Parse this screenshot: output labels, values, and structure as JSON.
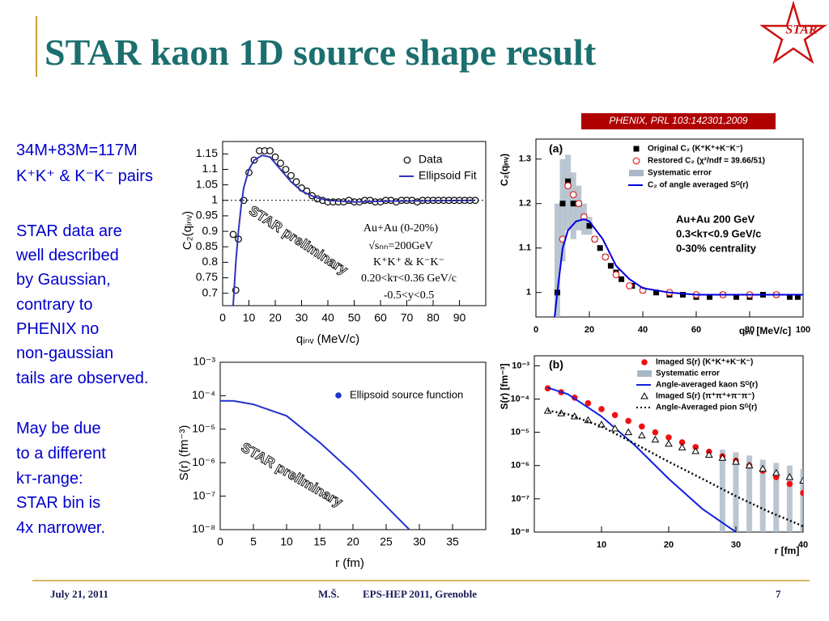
{
  "header": {
    "title": "STAR kaon 1D source shape result",
    "logo": "STAR"
  },
  "side_text": [
    [
      "34M+83M=117M",
      "K⁺K⁺ & K⁻K⁻ pairs"
    ],
    [
      "STAR data are",
      "well described",
      "by Gaussian,",
      "contrary to",
      "PHENIX no",
      "non-gaussian",
      "tails are observed."
    ],
    [
      "May be due",
      "to a different",
      "kᴛ-range:",
      "STAR bin is",
      "4x narrower."
    ]
  ],
  "footer": {
    "date": "July 21, 2011",
    "author": "M.Š.",
    "event": "EPS-HEP 2011, Grenoble",
    "page": "7"
  },
  "chart_data": [
    {
      "type": "line",
      "xlabel": "qᵢₙᵥ (MeV/c)",
      "ylabel": "C₂(qᵢₙᵥ)",
      "xlim": [
        0,
        100
      ],
      "xticks": [
        0,
        10,
        20,
        30,
        40,
        50,
        60,
        70,
        80,
        90
      ],
      "ylim": [
        0.66,
        1.19
      ],
      "yticks": [
        0.7,
        0.75,
        0.8,
        0.85,
        0.9,
        0.95,
        1,
        1.05,
        1.1,
        1.15
      ],
      "reference_line": 1,
      "legend": "upper right",
      "annotations": [
        "Au+Au (0-20%)",
        "√sₙₙ=200GeV",
        "K⁺K⁺ & K⁻K⁻",
        "0.20<kᴛ<0.36 GeV/c",
        "-0.5<y<0.5",
        "STAR preliminary"
      ],
      "series": [
        {
          "name": "Data",
          "kind": "points",
          "marker": "circle-open",
          "color": "#000000",
          "x": [
            4,
            5,
            6,
            8,
            10,
            12,
            14,
            16,
            18,
            20,
            22,
            24,
            26,
            28,
            30,
            32,
            34,
            36,
            38,
            40,
            42,
            44,
            46,
            48,
            50,
            52,
            54,
            56,
            58,
            60,
            62,
            64,
            66,
            68,
            70,
            72,
            74,
            76,
            78,
            80,
            82,
            84,
            86,
            88,
            90,
            92,
            94,
            96
          ],
          "values": [
            0.89,
            0.71,
            0.875,
            1.0,
            1.09,
            1.13,
            1.16,
            1.16,
            1.16,
            1.14,
            1.12,
            1.1,
            1.08,
            1.06,
            1.04,
            1.03,
            1.015,
            1.005,
            1.0,
            0.995,
            0.995,
            0.995,
            0.995,
            1.0,
            0.995,
            0.995,
            1.0,
            1.0,
            0.995,
            0.995,
            1.0,
            1.0,
            0.995,
            1.0,
            1.0,
            1.0,
            0.995,
            1.0,
            1.0,
            1.0,
            1.0,
            1.0,
            1.0,
            1.0,
            1.0,
            1.0,
            1.0,
            1.0
          ]
        },
        {
          "name": "Ellipsoid Fit",
          "kind": "line",
          "color": "#3333bb",
          "x": [
            4,
            5,
            6,
            7,
            8,
            10,
            12,
            15,
            18,
            22,
            26,
            30,
            35,
            40,
            50,
            60,
            70,
            80,
            96
          ],
          "values": [
            0.66,
            0.8,
            0.9,
            0.98,
            1.04,
            1.1,
            1.13,
            1.145,
            1.14,
            1.1,
            1.06,
            1.03,
            1.01,
            1.0,
            0.995,
            0.997,
            0.998,
            0.999,
            1.0
          ]
        }
      ]
    },
    {
      "type": "line",
      "xlabel": "qᵢₙᵥ [MeV/c]",
      "ylabel": "C₂(qᵢₙᵥ)",
      "source": "PHENIX, PRL 103:142301,2009",
      "xlim": [
        0,
        100
      ],
      "xticks": [
        0,
        20,
        40,
        60,
        80,
        100
      ],
      "ylim": [
        0.945,
        1.345
      ],
      "yticks": [
        1,
        1.1,
        1.2,
        1.3
      ],
      "legend": "upper right",
      "annotations": [
        "(a)",
        "Au+Au 200 GeV",
        "0.3<kᴛ<0.9 GeV/c",
        "0-30% centrality"
      ],
      "series": [
        {
          "name": "Original C₂ (K⁺K⁺+K⁻K⁻)",
          "kind": "points",
          "marker": "square",
          "color": "#000000",
          "x": [
            8,
            10,
            12,
            14,
            16,
            18,
            20,
            22,
            24,
            26,
            28,
            30,
            32,
            36,
            40,
            45,
            50,
            55,
            60,
            65,
            70,
            75,
            80,
            85,
            90,
            95,
            98
          ],
          "values": [
            1.0,
            1.2,
            1.25,
            1.2,
            1.2,
            1.17,
            1.15,
            1.12,
            1.1,
            1.08,
            1.06,
            1.045,
            1.03,
            1.015,
            1.005,
            1.0,
            0.995,
            0.995,
            0.99,
            0.99,
            0.995,
            0.99,
            0.99,
            0.995,
            0.995,
            0.99,
            0.99
          ]
        },
        {
          "name": "Restored C₂ (χ²/ndf = 39.66/51)",
          "kind": "points",
          "marker": "circle-open",
          "color": "#dd2222",
          "x": [
            10,
            12,
            14,
            16,
            18,
            22,
            26,
            30,
            35,
            40,
            50,
            60,
            70,
            80,
            90
          ],
          "values": [
            1.12,
            1.24,
            1.22,
            1.2,
            1.17,
            1.12,
            1.08,
            1.04,
            1.015,
            1.005,
            1.0,
            0.995,
            0.995,
            0.995,
            0.995
          ]
        },
        {
          "name": "Systematic error",
          "kind": "band",
          "color": "#a9b8c6",
          "x": [
            8,
            10,
            12,
            14,
            16,
            18,
            20
          ],
          "lower": [
            0.945,
            1.07,
            1.14,
            1.12,
            1.14,
            1.13,
            1.13
          ],
          "upper": [
            1.2,
            1.3,
            1.31,
            1.27,
            1.24,
            1.2,
            1.17
          ]
        },
        {
          "name": "C₂ of angle averaged Sᴳ(r)",
          "kind": "line",
          "color": "#0000dd",
          "x": [
            7,
            8,
            10,
            12,
            15,
            18,
            20,
            25,
            30,
            35,
            40,
            50,
            60,
            100
          ],
          "values": [
            0.945,
            1.0,
            1.1,
            1.14,
            1.16,
            1.165,
            1.16,
            1.12,
            1.06,
            1.03,
            1.01,
            1.0,
            0.995,
            0.995
          ]
        }
      ]
    },
    {
      "type": "line",
      "xlabel": "r (fm)",
      "ylabel": "S(r) (fm⁻³)",
      "log_y": true,
      "xlim": [
        0,
        40
      ],
      "xticks": [
        0,
        5,
        10,
        15,
        20,
        25,
        30,
        35
      ],
      "ylim": [
        1e-08,
        0.001
      ],
      "yticks": [
        {
          "value": 0.001,
          "label": "10⁻³"
        },
        {
          "value": 0.0001,
          "label": "10⁻⁴"
        },
        {
          "value": 1e-05,
          "label": "10⁻⁵"
        },
        {
          "value": 1e-06,
          "label": "10⁻⁶"
        },
        {
          "value": 1e-07,
          "label": "10⁻⁷"
        },
        {
          "value": 1e-08,
          "label": "10⁻⁸"
        }
      ],
      "legend": "upper right",
      "annotations": [
        "STAR preliminary"
      ],
      "series": [
        {
          "name": "Ellipsoid source function",
          "kind": "line",
          "marker": "circle",
          "color": "#2233cc",
          "x": [
            0,
            2,
            5,
            10,
            15,
            20,
            25,
            28.5
          ],
          "values": [
            7e-05,
            7e-05,
            5.5e-05,
            2.5e-05,
            4e-06,
            5e-07,
            5e-08,
            1e-08
          ]
        }
      ]
    },
    {
      "type": "line",
      "xlabel": "r [fm]",
      "ylabel": "S(r) [fm⁻³]",
      "log_y": true,
      "xlim": [
        0,
        40
      ],
      "xticks": [
        10,
        20,
        30,
        40
      ],
      "ylim": [
        1e-08,
        0.002
      ],
      "yticks": [
        {
          "value": 0.001,
          "label": "10⁻³"
        },
        {
          "value": 0.0001,
          "label": "10⁻⁴"
        },
        {
          "value": 1e-05,
          "label": "10⁻⁵"
        },
        {
          "value": 1e-06,
          "label": "10⁻⁶"
        },
        {
          "value": 1e-07,
          "label": "10⁻⁷"
        },
        {
          "value": 1e-08,
          "label": "10⁻⁸"
        }
      ],
      "legend": "upper right",
      "annotations": [
        "(b)"
      ],
      "series": [
        {
          "name": "Imaged S(r) (K⁺K⁺+K⁻K⁻)",
          "kind": "points",
          "marker": "circle",
          "color": "#ee1111",
          "x": [
            2,
            4,
            6,
            8,
            10,
            12,
            14,
            16,
            18,
            20,
            22,
            24,
            26,
            28,
            30,
            32,
            34,
            36,
            38,
            40
          ],
          "values": [
            0.00021,
            0.00016,
            0.00011,
            7.5e-05,
            5e-05,
            3.3e-05,
            2.2e-05,
            1.5e-05,
            1e-05,
            7e-06,
            5e-06,
            3.6e-06,
            2.6e-06,
            1.9e-06,
            1.4e-06,
            1e-06,
            7e-07,
            4.5e-07,
            2.8e-07,
            1.5e-07
          ]
        },
        {
          "name": "Systematic error",
          "kind": "band",
          "color": "#a9b8c6",
          "x": [
            28,
            30,
            32,
            34,
            36,
            38,
            40
          ],
          "lower": [
            1e-08,
            1e-08,
            1e-08,
            1e-08,
            1e-08,
            1e-08,
            1e-08
          ],
          "upper": [
            3e-06,
            2.5e-06,
            2e-06,
            1.5e-06,
            1.2e-06,
            1e-06,
            8e-07
          ]
        },
        {
          "name": "Angle-averaged kaon Sᴳ(r)",
          "kind": "line",
          "color": "#1122dd",
          "x": [
            2,
            5,
            10,
            15,
            20,
            25,
            30
          ],
          "values": [
            0.00022,
            0.00014,
            3e-05,
            4e-06,
            4e-07,
            5e-08,
            1e-08
          ]
        },
        {
          "name": "Imaged S(r) (π⁺π⁺+π⁻π⁻)",
          "kind": "points",
          "marker": "triangle-open",
          "color": "#000000",
          "x": [
            2,
            4,
            6,
            8,
            10,
            12,
            14,
            16,
            18,
            20,
            22,
            24,
            26,
            28,
            30,
            32,
            34,
            36,
            38,
            40
          ],
          "values": [
            4.4e-05,
            3.7e-05,
            3e-05,
            2.3e-05,
            1.7e-05,
            1.3e-05,
            1e-05,
            8e-06,
            6e-06,
            4.5e-06,
            3.5e-06,
            2.7e-06,
            2.1e-06,
            1.7e-06,
            1.3e-06,
            1e-06,
            8e-07,
            6e-07,
            4.5e-07,
            3.5e-07
          ]
        },
        {
          "name": "Angle-Averaged pion Sᴳ(r)",
          "kind": "line",
          "dotted": true,
          "color": "#000000",
          "x": [
            2,
            5,
            10,
            15,
            20,
            25,
            30,
            35,
            40
          ],
          "values": [
            4.5e-05,
            3.5e-05,
            1.5e-05,
            4.5e-06,
            1.3e-06,
            4e-07,
            1.2e-07,
            4e-08,
            1.5e-08
          ]
        }
      ]
    }
  ]
}
